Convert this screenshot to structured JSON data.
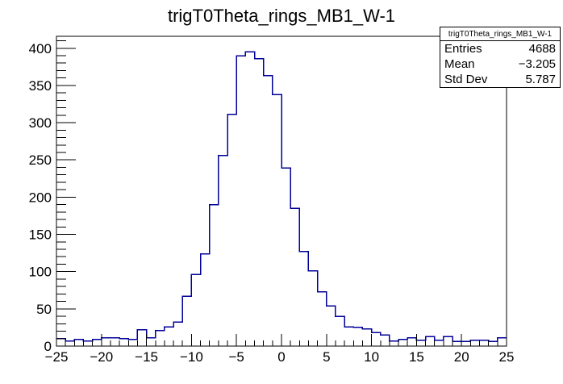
{
  "title": "trigT0Theta_rings_MB1_W-1",
  "stats_box": {
    "header": "trigT0Theta_rings_MB1_W-1",
    "rows": [
      {
        "label": "Entries",
        "value": "4688"
      },
      {
        "label": "Mean",
        "value": "−3.205"
      },
      {
        "label": "Std Dev",
        "value": "5.787"
      }
    ]
  },
  "chart_data": {
    "type": "bar",
    "subtype": "step-histogram",
    "title": "trigT0Theta_rings_MB1_W-1",
    "xlabel": "",
    "ylabel": "",
    "xlim": [
      -25,
      25
    ],
    "ylim": [
      0,
      416
    ],
    "bin_start": -25,
    "bin_width": 1,
    "values": [
      10,
      7,
      9,
      7,
      9,
      11,
      11,
      10,
      9,
      22,
      11,
      21,
      26,
      32,
      67,
      96,
      124,
      190,
      256,
      311,
      390,
      395,
      386,
      363,
      338,
      239,
      185,
      127,
      101,
      73,
      54,
      40,
      26,
      25,
      23,
      18,
      15,
      7,
      9,
      11,
      8,
      13,
      8,
      13,
      6,
      6,
      8,
      8,
      6,
      11
    ],
    "x_major_ticks": [
      -25,
      -20,
      -15,
      -10,
      -5,
      0,
      5,
      10,
      15,
      20,
      25
    ],
    "x_tick_labels": [
      "−25",
      "−20",
      "−15",
      "−10",
      "−5",
      "0",
      "5",
      "10",
      "15",
      "20",
      "25"
    ],
    "x_minor_tick_step": 1,
    "y_major_ticks": [
      0,
      50,
      100,
      150,
      200,
      250,
      300,
      350,
      400
    ],
    "y_tick_labels": [
      "0",
      "50",
      "100",
      "150",
      "200",
      "250",
      "300",
      "350",
      "400"
    ],
    "y_minor_tick_step": 10,
    "grid": false,
    "legend_position": "stats box top-right",
    "entries": 4688,
    "mean": -3.205,
    "std_dev": 5.787
  },
  "colors": {
    "histogram_line": "#000099",
    "axis": "#000000",
    "background": "#ffffff"
  }
}
